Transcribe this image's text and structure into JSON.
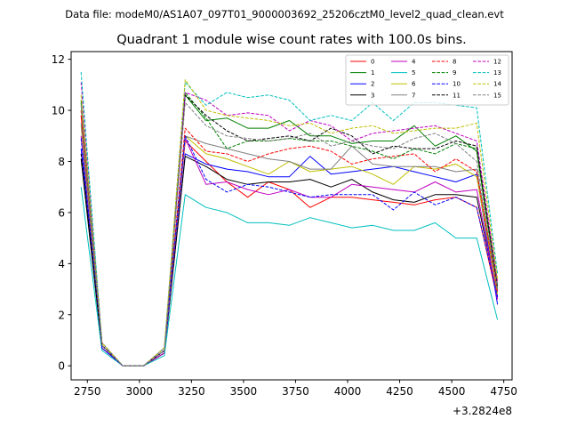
{
  "chart_data": {
    "type": "line",
    "suptitle": "Data file: modeM0/AS1A07_097T01_9000003692_25206cztM0_level2_quad_clean.evt",
    "title": "Quadrant 1 module wise count rates with 100.0s bins.",
    "xlabel": "",
    "ylabel": "",
    "x_offset_label": "+3.2824e8",
    "xlim": [
      2672,
      4790
    ],
    "ylim": [
      -0.55,
      12.3
    ],
    "xticks": [
      2750,
      3000,
      3250,
      3500,
      3750,
      4000,
      4250,
      4500,
      4750
    ],
    "yticks": [
      0,
      2,
      4,
      6,
      8,
      10,
      12
    ],
    "x": [
      2720,
      2820,
      2920,
      3020,
      3120,
      3220,
      3320,
      3420,
      3520,
      3620,
      3720,
      3820,
      3920,
      4020,
      4120,
      4220,
      4320,
      4420,
      4520,
      4620,
      4720
    ],
    "series": [
      {
        "name": "0",
        "color": "#ff0000",
        "dash": "solid",
        "values": [
          9.8,
          0.8,
          0.0,
          0.0,
          0.6,
          8.8,
          8.0,
          7.2,
          6.6,
          7.2,
          6.9,
          6.2,
          6.6,
          6.6,
          6.5,
          6.4,
          6.3,
          6.5,
          6.6,
          6.2,
          2.6
        ]
      },
      {
        "name": "1",
        "color": "#008000",
        "dash": "solid",
        "values": [
          10.3,
          0.8,
          0.0,
          0.0,
          0.6,
          10.6,
          9.6,
          9.7,
          9.3,
          9.3,
          9.6,
          9.0,
          9.0,
          8.7,
          8.8,
          8.8,
          9.4,
          8.6,
          9.0,
          8.4,
          3.0
        ]
      },
      {
        "name": "2",
        "color": "#0000ff",
        "dash": "solid",
        "values": [
          8.5,
          0.7,
          0.0,
          0.0,
          0.5,
          8.3,
          7.9,
          7.7,
          7.6,
          7.4,
          7.4,
          8.2,
          7.5,
          7.6,
          7.7,
          7.8,
          7.6,
          7.4,
          7.2,
          7.5,
          2.4
        ]
      },
      {
        "name": "3",
        "color": "#000000",
        "dash": "solid",
        "values": [
          8.1,
          0.7,
          0.0,
          0.0,
          0.5,
          8.2,
          7.8,
          7.3,
          7.1,
          7.2,
          7.2,
          7.3,
          7.0,
          7.3,
          6.8,
          6.5,
          6.4,
          6.7,
          6.7,
          6.6,
          2.7
        ]
      },
      {
        "name": "4",
        "color": "#bf00bf",
        "dash": "solid",
        "values": [
          9.0,
          0.7,
          0.0,
          0.0,
          0.5,
          8.9,
          7.1,
          7.2,
          6.9,
          6.7,
          6.9,
          6.6,
          6.6,
          7.1,
          7.0,
          6.9,
          6.8,
          7.2,
          6.8,
          6.9,
          2.6
        ]
      },
      {
        "name": "5",
        "color": "#00bfbf",
        "dash": "solid",
        "values": [
          7.0,
          0.6,
          0.0,
          0.0,
          0.4,
          6.7,
          6.2,
          6.0,
          5.6,
          5.6,
          5.5,
          5.8,
          5.6,
          5.4,
          5.5,
          5.3,
          5.3,
          5.6,
          5.0,
          5.0,
          1.8
        ]
      },
      {
        "name": "6",
        "color": "#bfbf00",
        "dash": "solid",
        "values": [
          9.4,
          0.8,
          0.0,
          0.0,
          0.6,
          9.0,
          8.3,
          8.1,
          7.8,
          7.5,
          8.0,
          7.6,
          7.7,
          7.8,
          7.5,
          7.1,
          7.8,
          7.7,
          7.9,
          7.4,
          2.8
        ]
      },
      {
        "name": "7",
        "color": "#808080",
        "dash": "solid",
        "values": [
          9.5,
          0.8,
          0.0,
          0.0,
          0.6,
          9.0,
          8.7,
          8.5,
          8.3,
          8.1,
          8.0,
          7.7,
          7.7,
          8.6,
          7.9,
          7.8,
          7.8,
          7.8,
          7.6,
          7.7,
          2.9
        ]
      },
      {
        "name": "8",
        "color": "#ff0000",
        "dash": "dashed",
        "values": [
          10.0,
          0.9,
          0.0,
          0.0,
          0.7,
          9.3,
          8.4,
          8.3,
          8.0,
          8.3,
          8.5,
          8.6,
          8.4,
          7.9,
          8.1,
          8.2,
          8.3,
          7.6,
          8.1,
          7.6,
          2.9
        ]
      },
      {
        "name": "9",
        "color": "#008000",
        "dash": "dashed",
        "values": [
          10.4,
          0.9,
          0.0,
          0.0,
          0.7,
          10.7,
          9.7,
          8.5,
          8.8,
          8.8,
          8.9,
          8.8,
          8.8,
          8.6,
          8.4,
          8.1,
          8.5,
          8.3,
          8.7,
          8.5,
          3.1
        ]
      },
      {
        "name": "10",
        "color": "#0000ff",
        "dash": "dashed",
        "values": [
          8.9,
          0.7,
          0.0,
          0.0,
          0.6,
          9.0,
          7.3,
          6.8,
          7.1,
          7.0,
          6.8,
          6.6,
          6.7,
          6.7,
          6.7,
          6.1,
          6.8,
          6.3,
          6.6,
          6.2,
          2.7
        ]
      },
      {
        "name": "11",
        "color": "#000000",
        "dash": "dashed",
        "values": [
          8.3,
          0.8,
          0.0,
          0.0,
          0.6,
          10.6,
          9.8,
          9.2,
          8.8,
          8.9,
          9.0,
          8.8,
          9.3,
          9.0,
          8.3,
          8.6,
          8.5,
          8.5,
          8.8,
          8.6,
          3.1
        ]
      },
      {
        "name": "12",
        "color": "#bf00bf",
        "dash": "dashed",
        "values": [
          11.1,
          0.9,
          0.0,
          0.0,
          0.7,
          10.7,
          10.4,
          9.8,
          9.9,
          9.8,
          9.2,
          9.6,
          9.4,
          8.8,
          9.1,
          9.2,
          9.3,
          9.4,
          9.1,
          8.8,
          3.3
        ]
      },
      {
        "name": "13",
        "color": "#00bfbf",
        "dash": "dashed",
        "values": [
          11.5,
          0.9,
          0.0,
          0.0,
          0.7,
          11.1,
          10.2,
          10.7,
          10.5,
          10.6,
          10.4,
          9.6,
          9.8,
          9.6,
          10.3,
          9.6,
          10.3,
          10.3,
          10.2,
          10.1,
          3.6
        ]
      },
      {
        "name": "14",
        "color": "#bfbf00",
        "dash": "dashed",
        "values": [
          10.6,
          0.9,
          0.0,
          0.0,
          0.7,
          11.2,
          10.0,
          9.8,
          9.7,
          9.6,
          9.4,
          9.5,
          9.1,
          9.3,
          9.4,
          9.1,
          9.2,
          9.3,
          9.3,
          9.5,
          3.4
        ]
      },
      {
        "name": "15",
        "color": "#808080",
        "dash": "dashed",
        "values": [
          10.2,
          0.8,
          0.0,
          0.0,
          0.6,
          10.3,
          9.4,
          9.0,
          8.9,
          8.8,
          8.9,
          9.1,
          8.6,
          8.8,
          8.6,
          8.5,
          8.9,
          9.1,
          8.7,
          8.0,
          3.0
        ]
      }
    ]
  }
}
